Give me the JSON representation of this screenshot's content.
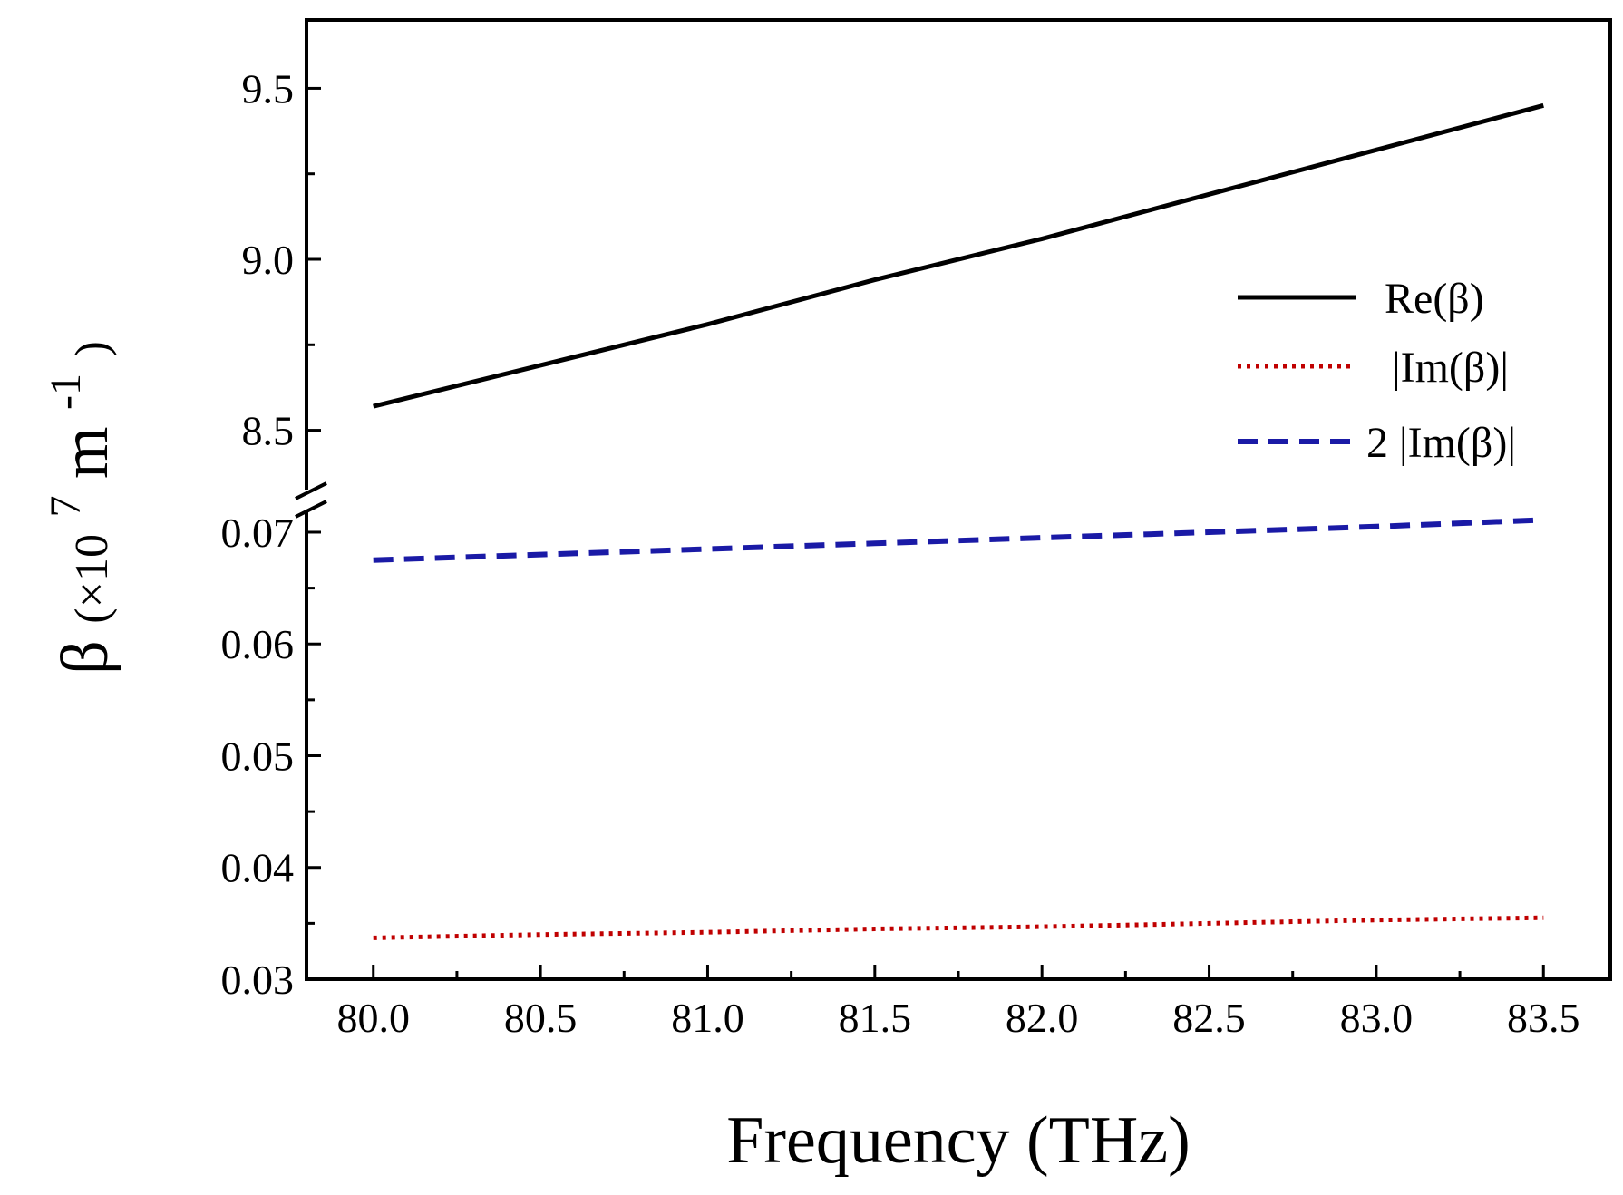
{
  "chart_data": {
    "type": "line",
    "title": "",
    "xlabel": "Frequency (THz)",
    "ylabel": {
      "symbol": "β",
      "prefix": "(×10",
      "exponent": "7",
      "unit": "m",
      "unit_exponent": "-1",
      "suffix": ")"
    },
    "xlim": [
      79.8,
      83.7
    ],
    "x_ticks": [
      80.0,
      80.5,
      81.0,
      81.5,
      82.0,
      82.5,
      83.0,
      83.5
    ],
    "x_tick_labels": [
      "80.0",
      "80.5",
      "81.0",
      "81.5",
      "82.0",
      "82.5",
      "83.0",
      "83.5"
    ],
    "y_axis_break": true,
    "y_upper": {
      "ylim": [
        8.3,
        9.7
      ],
      "ticks": [
        8.5,
        9.0,
        9.5
      ],
      "tick_labels": [
        "8.5",
        "9.0",
        "9.5"
      ]
    },
    "y_lower": {
      "ylim": [
        0.03,
        0.073
      ],
      "ticks": [
        0.03,
        0.04,
        0.05,
        0.06,
        0.07
      ],
      "tick_labels": [
        "0.03",
        "0.04",
        "0.05",
        "0.06",
        "0.07"
      ]
    },
    "series": [
      {
        "name": "Re(β)",
        "panel": "upper",
        "color": "#000000",
        "style": "solid",
        "x": [
          80.0,
          80.5,
          81.0,
          81.5,
          82.0,
          82.5,
          83.0,
          83.5
        ],
        "values": [
          8.57,
          8.69,
          8.81,
          8.94,
          9.06,
          9.19,
          9.32,
          9.45
        ]
      },
      {
        "name": "|Im(β)|",
        "panel": "lower",
        "color": "#c00000",
        "style": "dotted",
        "x": [
          80.0,
          80.5,
          81.0,
          81.5,
          82.0,
          82.5,
          83.0,
          83.5
        ],
        "values": [
          0.0337,
          0.034,
          0.0342,
          0.0345,
          0.0347,
          0.035,
          0.0353,
          0.0355
        ]
      },
      {
        "name": "2 |Im(β)|",
        "panel": "lower",
        "color": "#1a1aa6",
        "style": "dashed",
        "x": [
          80.0,
          80.5,
          81.0,
          81.5,
          82.0,
          82.5,
          83.0,
          83.5
        ],
        "values": [
          0.0675,
          0.068,
          0.0685,
          0.069,
          0.0695,
          0.07,
          0.0705,
          0.0711
        ]
      }
    ],
    "legend": {
      "position": "right-middle",
      "entries": [
        "Re(β)",
        "|Im(β)|",
        "2 |Im(β)|"
      ]
    }
  }
}
